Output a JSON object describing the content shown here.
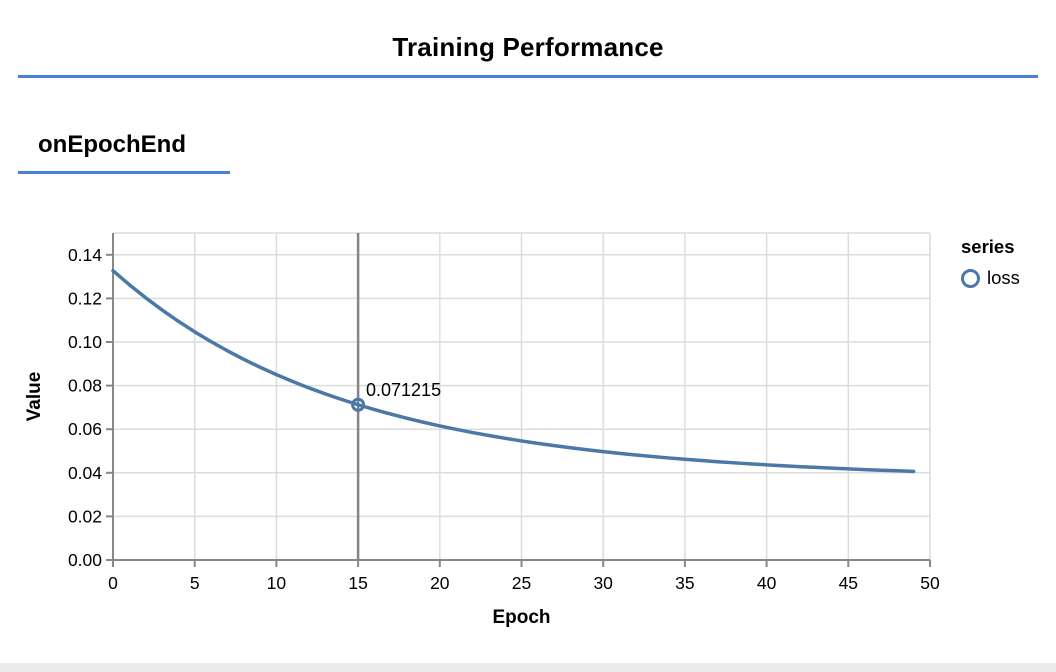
{
  "header": {
    "title": "Training Performance"
  },
  "section": {
    "title": "onEpochEnd"
  },
  "colors": {
    "accent_rule": "#4a80d8",
    "grid": "#dcdcdc",
    "axis": "#888888",
    "crosshair": "#858585",
    "text": "#000000",
    "bottom_bar": "#ebebeb"
  },
  "chart_data": {
    "type": "line",
    "title": "",
    "xlabel": "Epoch",
    "ylabel": "Value",
    "xlim": [
      0,
      50
    ],
    "ylim": [
      0,
      0.15
    ],
    "x_ticks": [
      0,
      5,
      10,
      15,
      20,
      25,
      30,
      35,
      40,
      45,
      50
    ],
    "y_ticks": [
      0.0,
      0.02,
      0.04,
      0.06,
      0.08,
      0.1,
      0.12,
      0.14
    ],
    "grid": true,
    "legend_position": "right",
    "legend_title": "series",
    "series": [
      {
        "name": "loss",
        "color": "#4c78a8",
        "x": [
          0,
          1,
          2,
          3,
          4,
          5,
          6,
          7,
          8,
          9,
          10,
          11,
          12,
          13,
          14,
          15,
          16,
          17,
          18,
          19,
          20,
          21,
          22,
          23,
          24,
          25,
          26,
          27,
          28,
          29,
          30,
          31,
          32,
          33,
          34,
          35,
          36,
          37,
          38,
          39,
          40,
          41,
          42,
          43,
          44,
          45,
          46,
          47,
          48,
          49
        ],
        "values": [
          0.1327,
          0.126267,
          0.120278,
          0.114702,
          0.109508,
          0.104672,
          0.100167,
          0.095972,
          0.092063,
          0.088422,
          0.085029,
          0.081867,
          0.078922,
          0.076176,
          0.073616,
          0.071215,
          0.069005,
          0.06693,
          0.064994,
          0.063189,
          0.061504,
          0.059932,
          0.058465,
          0.057095,
          0.055815,
          0.05462,
          0.053503,
          0.05246,
          0.051485,
          0.050572,
          0.049719,
          0.048921,
          0.048174,
          0.047473,
          0.046818,
          0.046204,
          0.045628,
          0.045088,
          0.044581,
          0.044106,
          0.043658,
          0.043239,
          0.042843,
          0.042472,
          0.042122,
          0.041794,
          0.041483,
          0.041191,
          0.040914,
          0.040653
        ]
      }
    ],
    "highlight": {
      "x": 15,
      "value": 0.071215,
      "label": "0.071215"
    }
  }
}
